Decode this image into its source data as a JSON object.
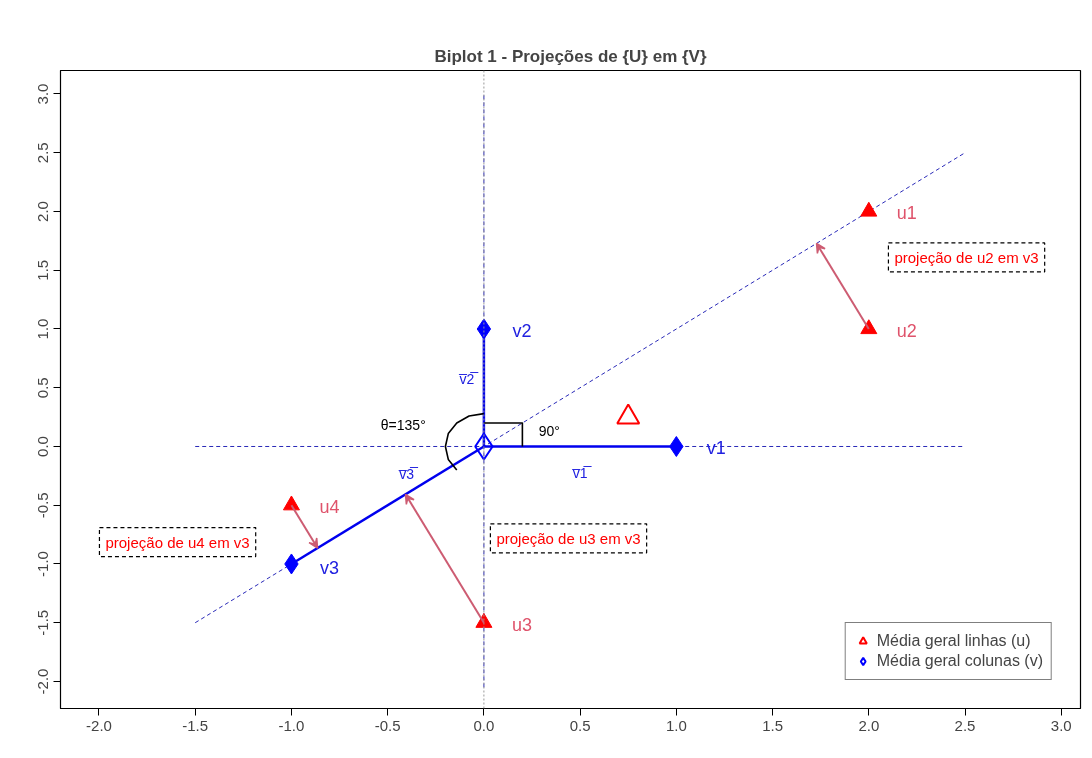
{
  "chart_data": {
    "type": "scatter",
    "title": "Biplot 1 - Projeções de {U} em {V}",
    "xlim": [
      -2.2,
      3.1
    ],
    "ylim": [
      -2.23,
      3.2
    ],
    "xticks": [
      {
        "value": -2,
        "label": "-2.0"
      },
      {
        "value": -1.5,
        "label": "-1.5"
      },
      {
        "value": -1,
        "label": "-1.0"
      },
      {
        "value": -0.5,
        "label": "-0.5"
      },
      {
        "value": 0,
        "label": "0.0"
      },
      {
        "value": 0.5,
        "label": "0.5"
      },
      {
        "value": 1,
        "label": "1.0"
      },
      {
        "value": 1.5,
        "label": "1.5"
      },
      {
        "value": 2,
        "label": "2.0"
      },
      {
        "value": 2.5,
        "label": "2.5"
      },
      {
        "value": 3,
        "label": "3.0"
      }
    ],
    "yticks": [
      {
        "value": -2,
        "label": "-2.0"
      },
      {
        "value": -1.5,
        "label": "-1.5"
      },
      {
        "value": -1,
        "label": "-1.0"
      },
      {
        "value": -0.5,
        "label": "-0.5"
      },
      {
        "value": 0,
        "label": "0.0"
      },
      {
        "value": 0.5,
        "label": "0.5"
      },
      {
        "value": 1,
        "label": "1.0"
      },
      {
        "value": 1.5,
        "label": "1.5"
      },
      {
        "value": 2,
        "label": "2.0"
      },
      {
        "value": 2.5,
        "label": "2.5"
      },
      {
        "value": 3,
        "label": "3.0"
      }
    ],
    "grid": false,
    "legend": "bottom right",
    "ref_lines": [
      {
        "axis": "x",
        "value": 0,
        "color": "#9a9a9a",
        "line_style": "dotted"
      }
    ],
    "series": [
      {
        "type": "line",
        "color": "#2a2ab8",
        "line_style": "dashed",
        "x": [
          -1.5,
          2.5
        ],
        "values": [
          -1.5,
          2.5
        ]
      },
      {
        "type": "line",
        "color": "#2a2ab8",
        "line_style": "dashed",
        "x": [
          -1.5,
          2.5
        ],
        "values": [
          0,
          0
        ]
      },
      {
        "type": "line",
        "color": "#2a2ab8",
        "line_style": "dashed",
        "x": [
          0,
          0
        ],
        "values": [
          -2.05,
          3.0
        ]
      },
      {
        "type": "line",
        "color": "#0000ee",
        "line_style": "solid",
        "x": [
          0,
          1
        ],
        "values": [
          0,
          0
        ]
      },
      {
        "type": "line",
        "color": "#0000ee",
        "line_style": "solid",
        "x": [
          0,
          0
        ],
        "values": [
          0,
          1
        ]
      },
      {
        "type": "line",
        "color": "#0000ee",
        "line_style": "solid",
        "x": [
          0,
          -1
        ],
        "values": [
          0,
          -1
        ]
      },
      {
        "type": "line",
        "color": "#000000",
        "line_style": "solid",
        "x": [
          0,
          0.2,
          0.2
        ],
        "values": [
          0.2,
          0.2,
          0
        ]
      },
      {
        "type": "line",
        "color": "#000000",
        "line_style": "solid",
        "x": [
          0,
          -0.077,
          -0.141,
          -0.185,
          -0.2,
          -0.185,
          -0.141
        ],
        "values": [
          0.28,
          0.26,
          0.2,
          0.11,
          0,
          -0.11,
          -0.2
        ]
      },
      {
        "color": "#ff0000",
        "marker": "triangle",
        "x": [
          2,
          2,
          0,
          -1
        ],
        "values": [
          2,
          1,
          -1.5,
          -0.5
        ]
      },
      {
        "color": "#0000ff",
        "marker": "diamond",
        "x": [
          1,
          0,
          -1
        ],
        "values": [
          0,
          1,
          -1
        ]
      },
      {
        "name": "Média geral linhas (u)",
        "color": "#ff0000",
        "marker": "triangle",
        "x": [
          0.75
        ],
        "values": [
          0.25
        ]
      },
      {
        "name": "Média geral colunas (v)",
        "color": "#0000ff",
        "marker": "diamond",
        "x": [
          0
        ],
        "values": [
          0
        ]
      }
    ],
    "annotations": [
      "u1",
      "u2",
      "u3",
      "u4",
      "v1",
      "v2",
      "v3",
      "v̅1̅",
      "v̅2̅",
      "v̅3̅",
      "θ=135°",
      "90°",
      "projeção de u2 em v3",
      "projeção de u3 em v3",
      "projeção de u4 em v3"
    ]
  }
}
